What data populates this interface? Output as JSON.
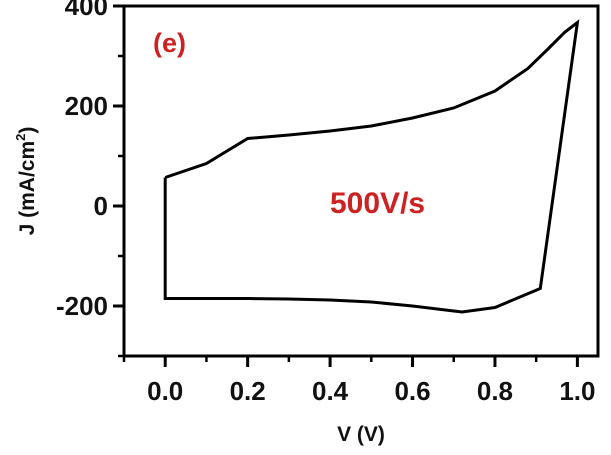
{
  "chart_data": {
    "type": "line",
    "panel_label": "(e)",
    "annotation": "500V/s",
    "xlabel": "V (V)",
    "ylabel_main": "J (mA/cm",
    "ylabel_sup": "2",
    "ylabel_close": ")",
    "xlim": [
      -0.1,
      1.05
    ],
    "ylim": [
      -300,
      400
    ],
    "xticks": [
      0.0,
      0.2,
      0.4,
      0.6,
      0.8,
      1.0
    ],
    "xtick_labels": [
      "0.0",
      "0.2",
      "0.4",
      "0.6",
      "0.8",
      "1.0"
    ],
    "yticks": [
      -200,
      0,
      200,
      400
    ],
    "ytick_labels": [
      "-200",
      "0",
      "200",
      "400"
    ],
    "x_minor_ticks": [
      -0.1,
      0.1,
      0.3,
      0.5,
      0.7,
      0.9
    ],
    "y_minor_ticks": [
      -300,
      -100,
      100,
      300
    ],
    "grid": false,
    "colors": {
      "curve": "#000000",
      "annotation": "#cc2222",
      "panel_label": "#cc2222"
    },
    "series": [
      {
        "x": [
          0.0,
          0.1,
          0.2,
          0.3,
          0.4,
          0.5,
          0.6,
          0.7,
          0.8,
          0.88,
          0.93,
          0.97,
          1.0,
          0.91,
          0.8,
          0.72,
          0.6,
          0.5,
          0.4,
          0.3,
          0.2,
          0.1,
          0.0,
          0.0
        ],
        "y": [
          57,
          85,
          135,
          142,
          150,
          160,
          176,
          196,
          230,
          275,
          315,
          348,
          367,
          -165,
          -203,
          -212,
          -200,
          -192,
          -188,
          -186,
          -185,
          -185,
          -185,
          57
        ]
      }
    ]
  }
}
